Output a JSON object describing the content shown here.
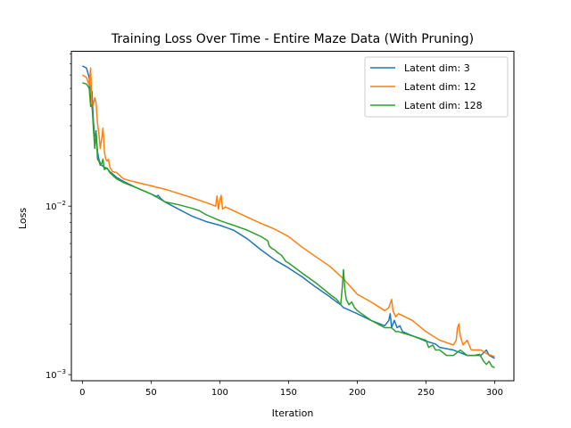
{
  "chart_data": {
    "type": "line",
    "title": "Training Loss Over Time - Entire Maze Data (With Pruning)",
    "xlabel": "Iteration",
    "ylabel": "Loss",
    "xlim": [
      -8,
      314
    ],
    "ylim": [
      0.00092,
      0.083
    ],
    "yscale": "log",
    "x_ticks": [
      0,
      50,
      100,
      150,
      200,
      250,
      300
    ],
    "x_tick_labels": [
      "0",
      "50",
      "100",
      "150",
      "200",
      "250",
      "300"
    ],
    "y_major_ticks": [
      {
        "value": 0.01,
        "base": "10",
        "exp": "−2"
      },
      {
        "value": 0.001,
        "base": "10",
        "exp": "−3"
      }
    ],
    "legend": {
      "placement": "top-right"
    },
    "grid": false,
    "series": [
      {
        "name": "Latent dim: 3",
        "color": "#1f77b4",
        "points": [
          [
            0,
            0.068
          ],
          [
            3,
            0.066
          ],
          [
            5,
            0.058
          ],
          [
            6,
            0.042
          ],
          [
            7,
            0.048
          ],
          [
            8,
            0.032
          ],
          [
            9,
            0.026
          ],
          [
            10,
            0.027
          ],
          [
            11,
            0.021
          ],
          [
            12,
            0.019
          ],
          [
            13,
            0.018
          ],
          [
            14,
            0.0175
          ],
          [
            16,
            0.017
          ],
          [
            18,
            0.0168
          ],
          [
            20,
            0.016
          ],
          [
            25,
            0.0148
          ],
          [
            30,
            0.014
          ],
          [
            40,
            0.0128
          ],
          [
            50,
            0.0118
          ],
          [
            54,
            0.0114
          ],
          [
            55,
            0.0116
          ],
          [
            57,
            0.0111
          ],
          [
            60,
            0.0106
          ],
          [
            70,
            0.0096
          ],
          [
            80,
            0.0087
          ],
          [
            90,
            0.0081
          ],
          [
            100,
            0.0077
          ],
          [
            110,
            0.0072
          ],
          [
            120,
            0.0064
          ],
          [
            130,
            0.0055
          ],
          [
            140,
            0.0048
          ],
          [
            150,
            0.0043
          ],
          [
            160,
            0.0038
          ],
          [
            170,
            0.0033
          ],
          [
            180,
            0.0029
          ],
          [
            185,
            0.0027
          ],
          [
            188,
            0.0026
          ],
          [
            190,
            0.0025
          ],
          [
            195,
            0.0024
          ],
          [
            200,
            0.0023
          ],
          [
            210,
            0.0021
          ],
          [
            220,
            0.00195
          ],
          [
            223,
            0.0021
          ],
          [
            224,
            0.0023
          ],
          [
            225,
            0.0019
          ],
          [
            227,
            0.0021
          ],
          [
            229,
            0.0019
          ],
          [
            231,
            0.00195
          ],
          [
            233,
            0.0018
          ],
          [
            240,
            0.0017
          ],
          [
            250,
            0.00158
          ],
          [
            257,
            0.00152
          ],
          [
            260,
            0.00145
          ],
          [
            270,
            0.0014
          ],
          [
            280,
            0.0013
          ],
          [
            290,
            0.0013
          ],
          [
            294,
            0.0014
          ],
          [
            296,
            0.0013
          ],
          [
            300,
            0.00125
          ]
        ]
      },
      {
        "name": "Latent dim: 12",
        "color": "#ff7f0e",
        "points": [
          [
            0,
            0.06
          ],
          [
            3,
            0.058
          ],
          [
            5,
            0.052
          ],
          [
            6,
            0.066
          ],
          [
            7,
            0.038
          ],
          [
            8,
            0.04
          ],
          [
            9,
            0.044
          ],
          [
            10,
            0.041
          ],
          [
            11,
            0.031
          ],
          [
            12,
            0.027
          ],
          [
            13,
            0.022
          ],
          [
            14,
            0.025
          ],
          [
            15,
            0.029
          ],
          [
            16,
            0.021
          ],
          [
            17,
            0.019
          ],
          [
            18,
            0.0185
          ],
          [
            19,
            0.019
          ],
          [
            20,
            0.017
          ],
          [
            22,
            0.016
          ],
          [
            25,
            0.0158
          ],
          [
            28,
            0.015
          ],
          [
            30,
            0.0145
          ],
          [
            40,
            0.0138
          ],
          [
            50,
            0.0132
          ],
          [
            60,
            0.0126
          ],
          [
            70,
            0.0119
          ],
          [
            80,
            0.0112
          ],
          [
            90,
            0.0105
          ],
          [
            97,
            0.01
          ],
          [
            98,
            0.0115
          ],
          [
            99,
            0.0096
          ],
          [
            100,
            0.0108
          ],
          [
            101,
            0.0116
          ],
          [
            102,
            0.0096
          ],
          [
            104,
            0.0099
          ],
          [
            110,
            0.0094
          ],
          [
            120,
            0.0086
          ],
          [
            130,
            0.0079
          ],
          [
            140,
            0.0073
          ],
          [
            150,
            0.0066
          ],
          [
            160,
            0.0057
          ],
          [
            170,
            0.005
          ],
          [
            180,
            0.0044
          ],
          [
            190,
            0.0037
          ],
          [
            200,
            0.003
          ],
          [
            210,
            0.0027
          ],
          [
            220,
            0.0024
          ],
          [
            223,
            0.0025
          ],
          [
            225,
            0.0028
          ],
          [
            226,
            0.0024
          ],
          [
            228,
            0.0022
          ],
          [
            230,
            0.0023
          ],
          [
            240,
            0.0021
          ],
          [
            250,
            0.0018
          ],
          [
            260,
            0.0016
          ],
          [
            270,
            0.0015
          ],
          [
            272,
            0.0016
          ],
          [
            273,
            0.0019
          ],
          [
            274,
            0.002
          ],
          [
            275,
            0.0017
          ],
          [
            277,
            0.0015
          ],
          [
            280,
            0.0016
          ],
          [
            283,
            0.0014
          ],
          [
            290,
            0.0014
          ],
          [
            295,
            0.00132
          ],
          [
            300,
            0.00128
          ]
        ]
      },
      {
        "name": "Latent dim: 128",
        "color": "#2ca02c",
        "points": [
          [
            0,
            0.054
          ],
          [
            3,
            0.053
          ],
          [
            5,
            0.05
          ],
          [
            6,
            0.039
          ],
          [
            7,
            0.04
          ],
          [
            8,
            0.029
          ],
          [
            9,
            0.022
          ],
          [
            10,
            0.028
          ],
          [
            11,
            0.019
          ],
          [
            12,
            0.0185
          ],
          [
            13,
            0.0175
          ],
          [
            14,
            0.0178
          ],
          [
            15,
            0.019
          ],
          [
            16,
            0.0165
          ],
          [
            18,
            0.0168
          ],
          [
            20,
            0.0158
          ],
          [
            25,
            0.0145
          ],
          [
            30,
            0.0138
          ],
          [
            40,
            0.0128
          ],
          [
            50,
            0.0118
          ],
          [
            55,
            0.0112
          ],
          [
            60,
            0.0106
          ],
          [
            70,
            0.0102
          ],
          [
            80,
            0.0097
          ],
          [
            85,
            0.0094
          ],
          [
            90,
            0.0089
          ],
          [
            100,
            0.0082
          ],
          [
            110,
            0.0077
          ],
          [
            120,
            0.0072
          ],
          [
            130,
            0.0066
          ],
          [
            134,
            0.0063
          ],
          [
            135,
            0.0062
          ],
          [
            136,
            0.0058
          ],
          [
            138,
            0.0056
          ],
          [
            140,
            0.0055
          ],
          [
            142,
            0.0053
          ],
          [
            145,
            0.0051
          ],
          [
            148,
            0.0047
          ],
          [
            150,
            0.0046
          ],
          [
            160,
            0.004
          ],
          [
            170,
            0.0035
          ],
          [
            180,
            0.003
          ],
          [
            185,
            0.0028
          ],
          [
            188,
            0.0026
          ],
          [
            189,
            0.0032
          ],
          [
            190,
            0.0042
          ],
          [
            191,
            0.0032
          ],
          [
            192,
            0.0028
          ],
          [
            194,
            0.0026
          ],
          [
            196,
            0.0027
          ],
          [
            198,
            0.0025
          ],
          [
            200,
            0.0024
          ],
          [
            210,
            0.0021
          ],
          [
            220,
            0.0019
          ],
          [
            225,
            0.0019
          ],
          [
            228,
            0.0018
          ],
          [
            230,
            0.0018
          ],
          [
            240,
            0.0017
          ],
          [
            250,
            0.0016
          ],
          [
            252,
            0.00145
          ],
          [
            255,
            0.0015
          ],
          [
            257,
            0.0014
          ],
          [
            260,
            0.0014
          ],
          [
            265,
            0.0013
          ],
          [
            270,
            0.0013
          ],
          [
            275,
            0.0014
          ],
          [
            280,
            0.0013
          ],
          [
            285,
            0.0013
          ],
          [
            289,
            0.00132
          ],
          [
            292,
            0.0012
          ],
          [
            294,
            0.00115
          ],
          [
            296,
            0.0012
          ],
          [
            298,
            0.00112
          ],
          [
            300,
            0.0011
          ]
        ]
      }
    ]
  }
}
